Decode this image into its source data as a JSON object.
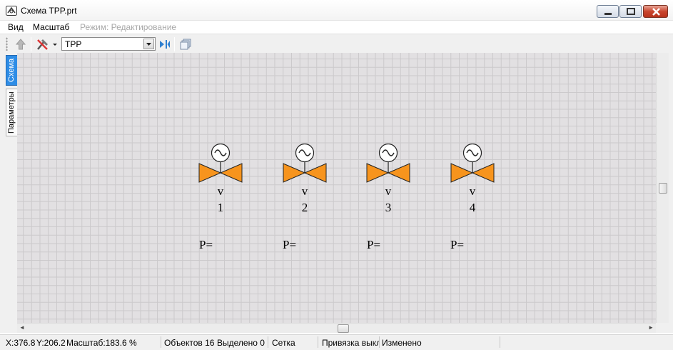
{
  "window": {
    "title": "Схема TPP.prt"
  },
  "menu": {
    "view": "Вид",
    "scale": "Масштаб",
    "mode": "Режим: Редактирование"
  },
  "toolbar": {
    "combo_value": "TPP"
  },
  "side_tabs": {
    "scheme": "Схема",
    "params": "Параметры"
  },
  "valves": [
    {
      "v": "v",
      "num": "1",
      "p": "P="
    },
    {
      "v": "v",
      "num": "2",
      "p": "P="
    },
    {
      "v": "v",
      "num": "3",
      "p": "P="
    },
    {
      "v": "v",
      "num": "4",
      "p": "P="
    }
  ],
  "colors": {
    "valve_fill": "#f7941d",
    "selected_tab": "#2e8de6",
    "canvas_bg": "#e2e0e2",
    "grid_line": "#cbc9cb"
  },
  "status": {
    "x": "X:376.8",
    "y": "Y:206.2",
    "zoom": "Масштаб:183.6 %",
    "objects": "Объектов 16",
    "selected": "Выделено 0",
    "grid": "Сетка",
    "snap": "Привязка выкл",
    "modified": "Изменено"
  }
}
